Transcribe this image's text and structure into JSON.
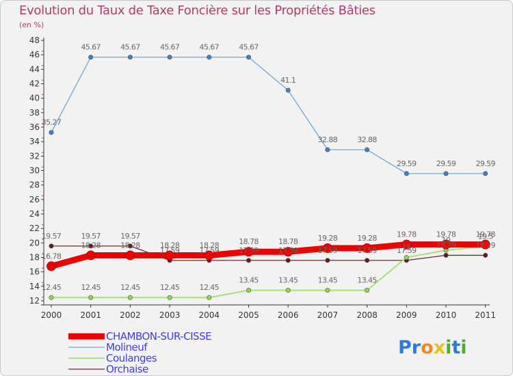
{
  "chart_data": {
    "type": "line",
    "title": "Evolution du Taux de Taxe Foncière sur les Propriétés Bâties",
    "ylabel": "(en %)",
    "xlabel": "",
    "categories": [
      "2000",
      "2001",
      "2002",
      "2003",
      "2004",
      "2005",
      "2006",
      "2007",
      "2008",
      "2009",
      "2010",
      "2011"
    ],
    "ylim": [
      12,
      48
    ],
    "yticks": [
      12,
      14,
      16,
      18,
      20,
      22,
      24,
      26,
      28,
      30,
      32,
      34,
      36,
      38,
      40,
      42,
      44,
      46,
      48
    ],
    "grid": false,
    "legend_position": "bottom-left",
    "series": [
      {
        "name": "Orchaise",
        "color": "#6b2a2a",
        "width": 1.3,
        "values": [
          19.57,
          19.57,
          19.57,
          17.59,
          17.59,
          17.59,
          17.59,
          17.59,
          17.59,
          17.59,
          18.29,
          18.29
        ],
        "labels": [
          "19.57",
          "19.57",
          "19.57",
          "17.59",
          "17.59",
          "17.59",
          "17.59",
          "17.59",
          "17.59",
          "17.59",
          "18.29",
          "18.29"
        ]
      },
      {
        "name": "Coulanges",
        "color": "#a8e07a",
        "width": 2,
        "values": [
          12.45,
          12.45,
          12.45,
          12.45,
          12.45,
          13.45,
          13.45,
          13.45,
          13.45,
          17.99,
          18.99,
          19.5
        ],
        "labels": [
          "12.45",
          "12.45",
          "12.45",
          "12.45",
          "12.45",
          "13.45",
          "13.45",
          "13.45",
          "13.45",
          "18",
          "19",
          "19.5"
        ]
      },
      {
        "name": "Molineuf",
        "color": "#6ea7d8",
        "width": 1.3,
        "values": [
          35.27,
          45.67,
          45.67,
          45.67,
          45.67,
          45.67,
          41.1,
          32.88,
          32.88,
          29.59,
          29.59,
          29.59
        ],
        "labels": [
          "35.27",
          "45.67",
          "45.67",
          "45.67",
          "45.67",
          "45.67",
          "41.1",
          "32.88",
          "32.88",
          "29.59",
          "29.59",
          "29.59"
        ]
      },
      {
        "name": "CHAMBON-SUR-CISSE",
        "color": "#ee0000",
        "width": 9,
        "values": [
          16.78,
          18.28,
          18.28,
          18.28,
          18.28,
          18.78,
          18.78,
          19.28,
          19.28,
          19.78,
          19.78,
          19.78
        ],
        "labels": [
          "16.78",
          "18.28",
          "18.28",
          "18.28",
          "18.28",
          "18.78",
          "18.78",
          "19.28",
          "19.28",
          "19.78",
          "19.78",
          "19.78"
        ]
      }
    ],
    "legend": [
      "CHAMBON-SUR-CISSE",
      "Molineuf",
      "Coulanges",
      "Orchaise"
    ]
  },
  "logo": {
    "text": "Proxiti",
    "letters": [
      "P",
      "r",
      "o",
      "x",
      "i",
      "t",
      "i"
    ],
    "colors": [
      "#2e7bd6",
      "#2e7bd6",
      "#f08a1c",
      "#e8c21a",
      "#4caf2a",
      "#2e7bd6",
      "#4caf2a"
    ]
  }
}
